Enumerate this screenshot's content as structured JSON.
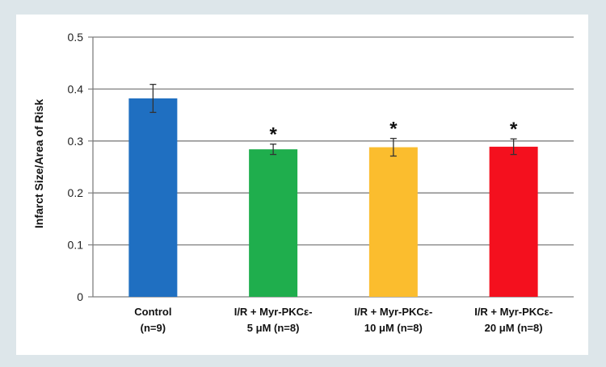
{
  "chart_data": {
    "type": "bar",
    "ylabel": "Infarct Size/Area of Risk",
    "ylim": [
      0,
      0.5
    ],
    "yticks": [
      "0",
      "0.1",
      "0.2",
      "0.3",
      "0.4",
      "0.5"
    ],
    "grid": true,
    "categories": [
      [
        "Control",
        "(n=9)"
      ],
      [
        "I/R + Myr-PKCε-",
        "5 μM (n=8)"
      ],
      [
        "I/R + Myr-PKCε-",
        "10 μM (n=8)"
      ],
      [
        "I/R + Myr-PKCε-",
        "20 μM (n=8)"
      ]
    ],
    "values": [
      0.382,
      0.284,
      0.288,
      0.289
    ],
    "errors": [
      0.027,
      0.01,
      0.017,
      0.015
    ],
    "significance": [
      "",
      "*",
      "*",
      "*"
    ],
    "colors": [
      "#1f6fc1",
      "#1fae4d",
      "#fbbd2e",
      "#f4101e"
    ]
  }
}
